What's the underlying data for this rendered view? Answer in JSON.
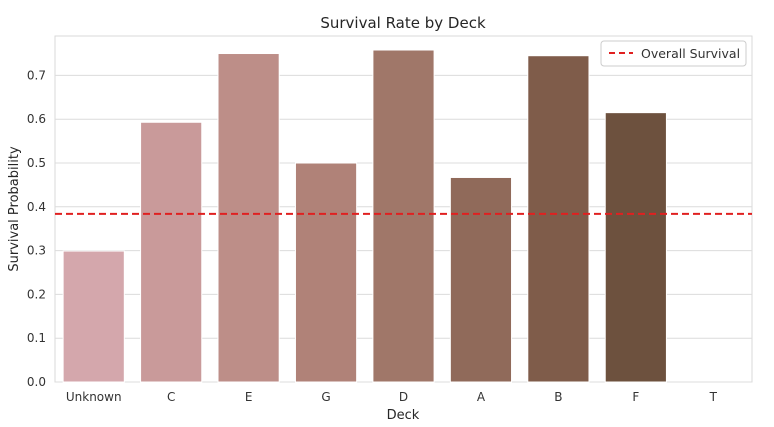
{
  "chart_data": {
    "type": "bar",
    "title": "Survival Rate by Deck",
    "xlabel": "Deck",
    "ylabel": "Survival Probability",
    "categories": [
      "Unknown",
      "C",
      "E",
      "G",
      "D",
      "A",
      "B",
      "F",
      "T"
    ],
    "values": [
      0.299,
      0.593,
      0.75,
      0.5,
      0.758,
      0.467,
      0.745,
      0.615,
      0.0
    ],
    "bar_colors": [
      "#d4a7ac",
      "#c99a9a",
      "#bd8e88",
      "#b08278",
      "#a07769",
      "#906a5a",
      "#7f5c4a",
      "#6d513e",
      "#5d4534"
    ],
    "ylim": [
      0,
      0.79
    ],
    "yticks": [
      0.0,
      0.1,
      0.2,
      0.3,
      0.4,
      0.5,
      0.6,
      0.7
    ],
    "ytick_labels": [
      "0.0",
      "0.1",
      "0.2",
      "0.3",
      "0.4",
      "0.5",
      "0.6",
      "0.7"
    ],
    "grid": true,
    "reference_line": {
      "value": 0.384,
      "label": "Overall Survival",
      "color": "#e02020",
      "style": "dashed"
    },
    "legend_position": "top-right"
  }
}
